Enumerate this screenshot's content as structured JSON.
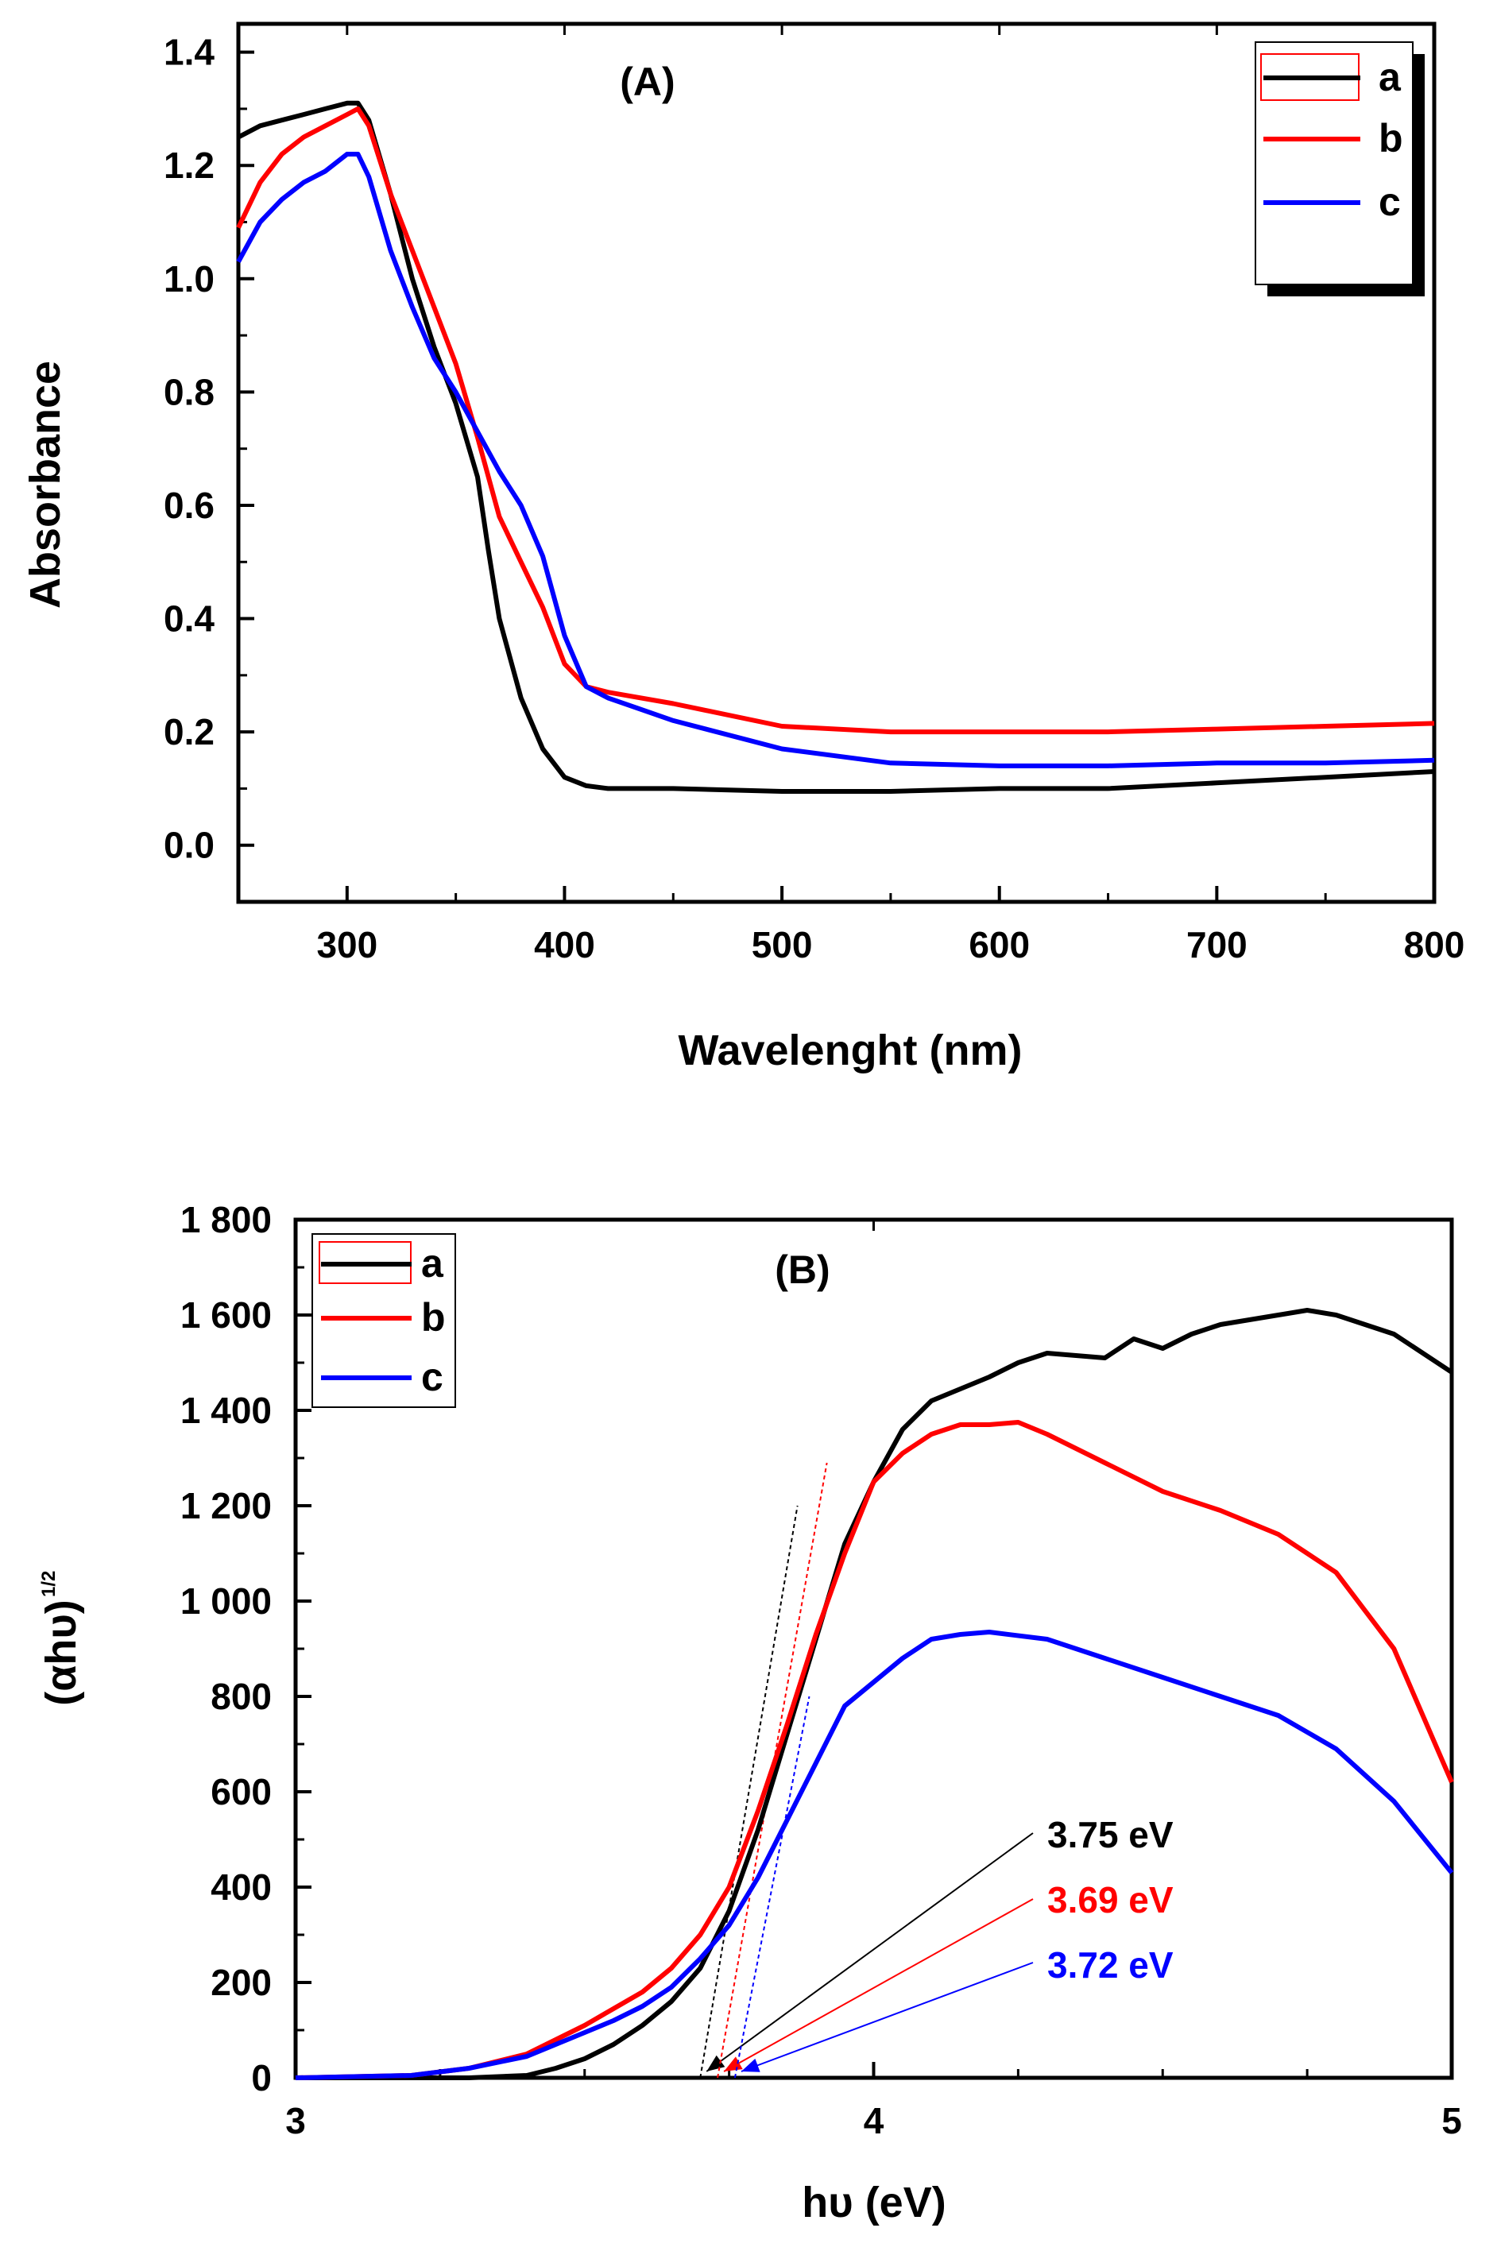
{
  "chart_data": [
    {
      "type": "line",
      "panel_label": "(A)",
      "xlabel": "Wavelenght (nm)",
      "ylabel": "Absorbance",
      "xlim": [
        250,
        800
      ],
      "ylim": [
        -0.1,
        1.45
      ],
      "xticks": [
        300,
        400,
        500,
        600,
        700,
        800
      ],
      "yticks": [
        0.0,
        0.2,
        0.4,
        0.6,
        0.8,
        1.0,
        1.2,
        1.4
      ],
      "ytick_labels": [
        "0.0",
        "0.2",
        "0.4",
        "0.6",
        "0.8",
        "1.0",
        "1.2",
        "1.4"
      ],
      "legend_position": "top-right",
      "series": [
        {
          "name": "a",
          "color": "#000000",
          "x": [
            250,
            260,
            270,
            280,
            290,
            300,
            305,
            310,
            320,
            330,
            340,
            350,
            360,
            365,
            370,
            380,
            390,
            400,
            410,
            420,
            450,
            500,
            550,
            600,
            650,
            700,
            750,
            800
          ],
          "y": [
            1.25,
            1.27,
            1.28,
            1.29,
            1.3,
            1.31,
            1.31,
            1.28,
            1.15,
            1.0,
            0.88,
            0.78,
            0.65,
            0.52,
            0.4,
            0.26,
            0.17,
            0.12,
            0.105,
            0.1,
            0.1,
            0.095,
            0.095,
            0.1,
            0.1,
            0.11,
            0.12,
            0.13
          ]
        },
        {
          "name": "b",
          "color": "#ff0000",
          "x": [
            250,
            260,
            270,
            280,
            290,
            300,
            305,
            310,
            320,
            330,
            340,
            350,
            360,
            370,
            380,
            390,
            400,
            410,
            420,
            450,
            500,
            550,
            600,
            650,
            700,
            750,
            800
          ],
          "y": [
            1.09,
            1.17,
            1.22,
            1.25,
            1.27,
            1.29,
            1.3,
            1.27,
            1.15,
            1.05,
            0.95,
            0.85,
            0.72,
            0.58,
            0.5,
            0.42,
            0.32,
            0.28,
            0.27,
            0.25,
            0.21,
            0.2,
            0.2,
            0.2,
            0.205,
            0.21,
            0.215
          ]
        },
        {
          "name": "c",
          "color": "#0000ff",
          "x": [
            250,
            260,
            270,
            280,
            290,
            300,
            305,
            310,
            320,
            330,
            340,
            350,
            360,
            370,
            380,
            390,
            400,
            410,
            420,
            450,
            500,
            550,
            600,
            650,
            700,
            750,
            800
          ],
          "y": [
            1.03,
            1.1,
            1.14,
            1.17,
            1.19,
            1.22,
            1.22,
            1.18,
            1.05,
            0.95,
            0.86,
            0.8,
            0.73,
            0.66,
            0.6,
            0.51,
            0.37,
            0.28,
            0.26,
            0.22,
            0.17,
            0.145,
            0.14,
            0.14,
            0.145,
            0.145,
            0.15
          ]
        }
      ]
    },
    {
      "type": "line",
      "panel_label": "(B)",
      "xlabel": "hυ (eV)",
      "ylabel": "(αhυ)",
      "ylabel_superscript": "1/2",
      "xlim": [
        3,
        5
      ],
      "ylim": [
        0,
        1800
      ],
      "xticks": [
        3,
        4,
        5
      ],
      "yticks": [
        0,
        200,
        400,
        600,
        800,
        1000,
        1200,
        1400,
        1600,
        1800
      ],
      "ytick_labels": [
        "0",
        "200",
        "400",
        "600",
        "800",
        "1 000",
        "1 200",
        "1 400",
        "1 600",
        "1 800"
      ],
      "legend_position": "top-left",
      "series": [
        {
          "name": "a",
          "color": "#000000",
          "x": [
            3.0,
            3.2,
            3.3,
            3.4,
            3.45,
            3.5,
            3.55,
            3.6,
            3.65,
            3.7,
            3.75,
            3.8,
            3.85,
            3.9,
            3.95,
            4.0,
            4.05,
            4.1,
            4.2,
            4.25,
            4.3,
            4.4,
            4.45,
            4.5,
            4.55,
            4.6,
            4.7,
            4.75,
            4.8,
            4.9,
            5.0
          ],
          "y": [
            0,
            0,
            0,
            5,
            20,
            40,
            70,
            110,
            160,
            230,
            350,
            520,
            720,
            920,
            1120,
            1250,
            1360,
            1420,
            1470,
            1500,
            1520,
            1510,
            1550,
            1530,
            1560,
            1580,
            1600,
            1610,
            1600,
            1560,
            1480
          ]
        },
        {
          "name": "b",
          "color": "#ff0000",
          "x": [
            3.0,
            3.2,
            3.3,
            3.4,
            3.45,
            3.5,
            3.55,
            3.6,
            3.65,
            3.7,
            3.75,
            3.8,
            3.85,
            3.9,
            3.95,
            4.0,
            4.05,
            4.1,
            4.15,
            4.2,
            4.25,
            4.3,
            4.4,
            4.5,
            4.6,
            4.7,
            4.8,
            4.9,
            5.0
          ],
          "y": [
            0,
            5,
            20,
            50,
            80,
            110,
            145,
            180,
            230,
            300,
            400,
            560,
            740,
            930,
            1100,
            1250,
            1310,
            1350,
            1370,
            1370,
            1375,
            1350,
            1290,
            1230,
            1190,
            1140,
            1060,
            900,
            620
          ]
        },
        {
          "name": "c",
          "color": "#0000ff",
          "x": [
            3.0,
            3.2,
            3.3,
            3.4,
            3.45,
            3.5,
            3.55,
            3.6,
            3.65,
            3.7,
            3.75,
            3.8,
            3.85,
            3.9,
            3.95,
            4.0,
            4.05,
            4.1,
            4.15,
            4.2,
            4.3,
            4.4,
            4.5,
            4.6,
            4.7,
            4.8,
            4.9,
            5.0
          ],
          "y": [
            0,
            5,
            20,
            45,
            70,
            95,
            120,
            150,
            190,
            250,
            320,
            420,
            540,
            660,
            780,
            830,
            880,
            920,
            930,
            935,
            920,
            880,
            840,
            800,
            760,
            690,
            580,
            430
          ]
        }
      ],
      "annotations": [
        {
          "text": "3.75 eV",
          "color": "#000000",
          "x_intercept": 3.7
        },
        {
          "text": "3.69 eV",
          "color": "#ff0000",
          "x_intercept": 3.73
        },
        {
          "text": "3.72 eV",
          "color": "#0000ff",
          "x_intercept": 3.76
        }
      ]
    }
  ]
}
